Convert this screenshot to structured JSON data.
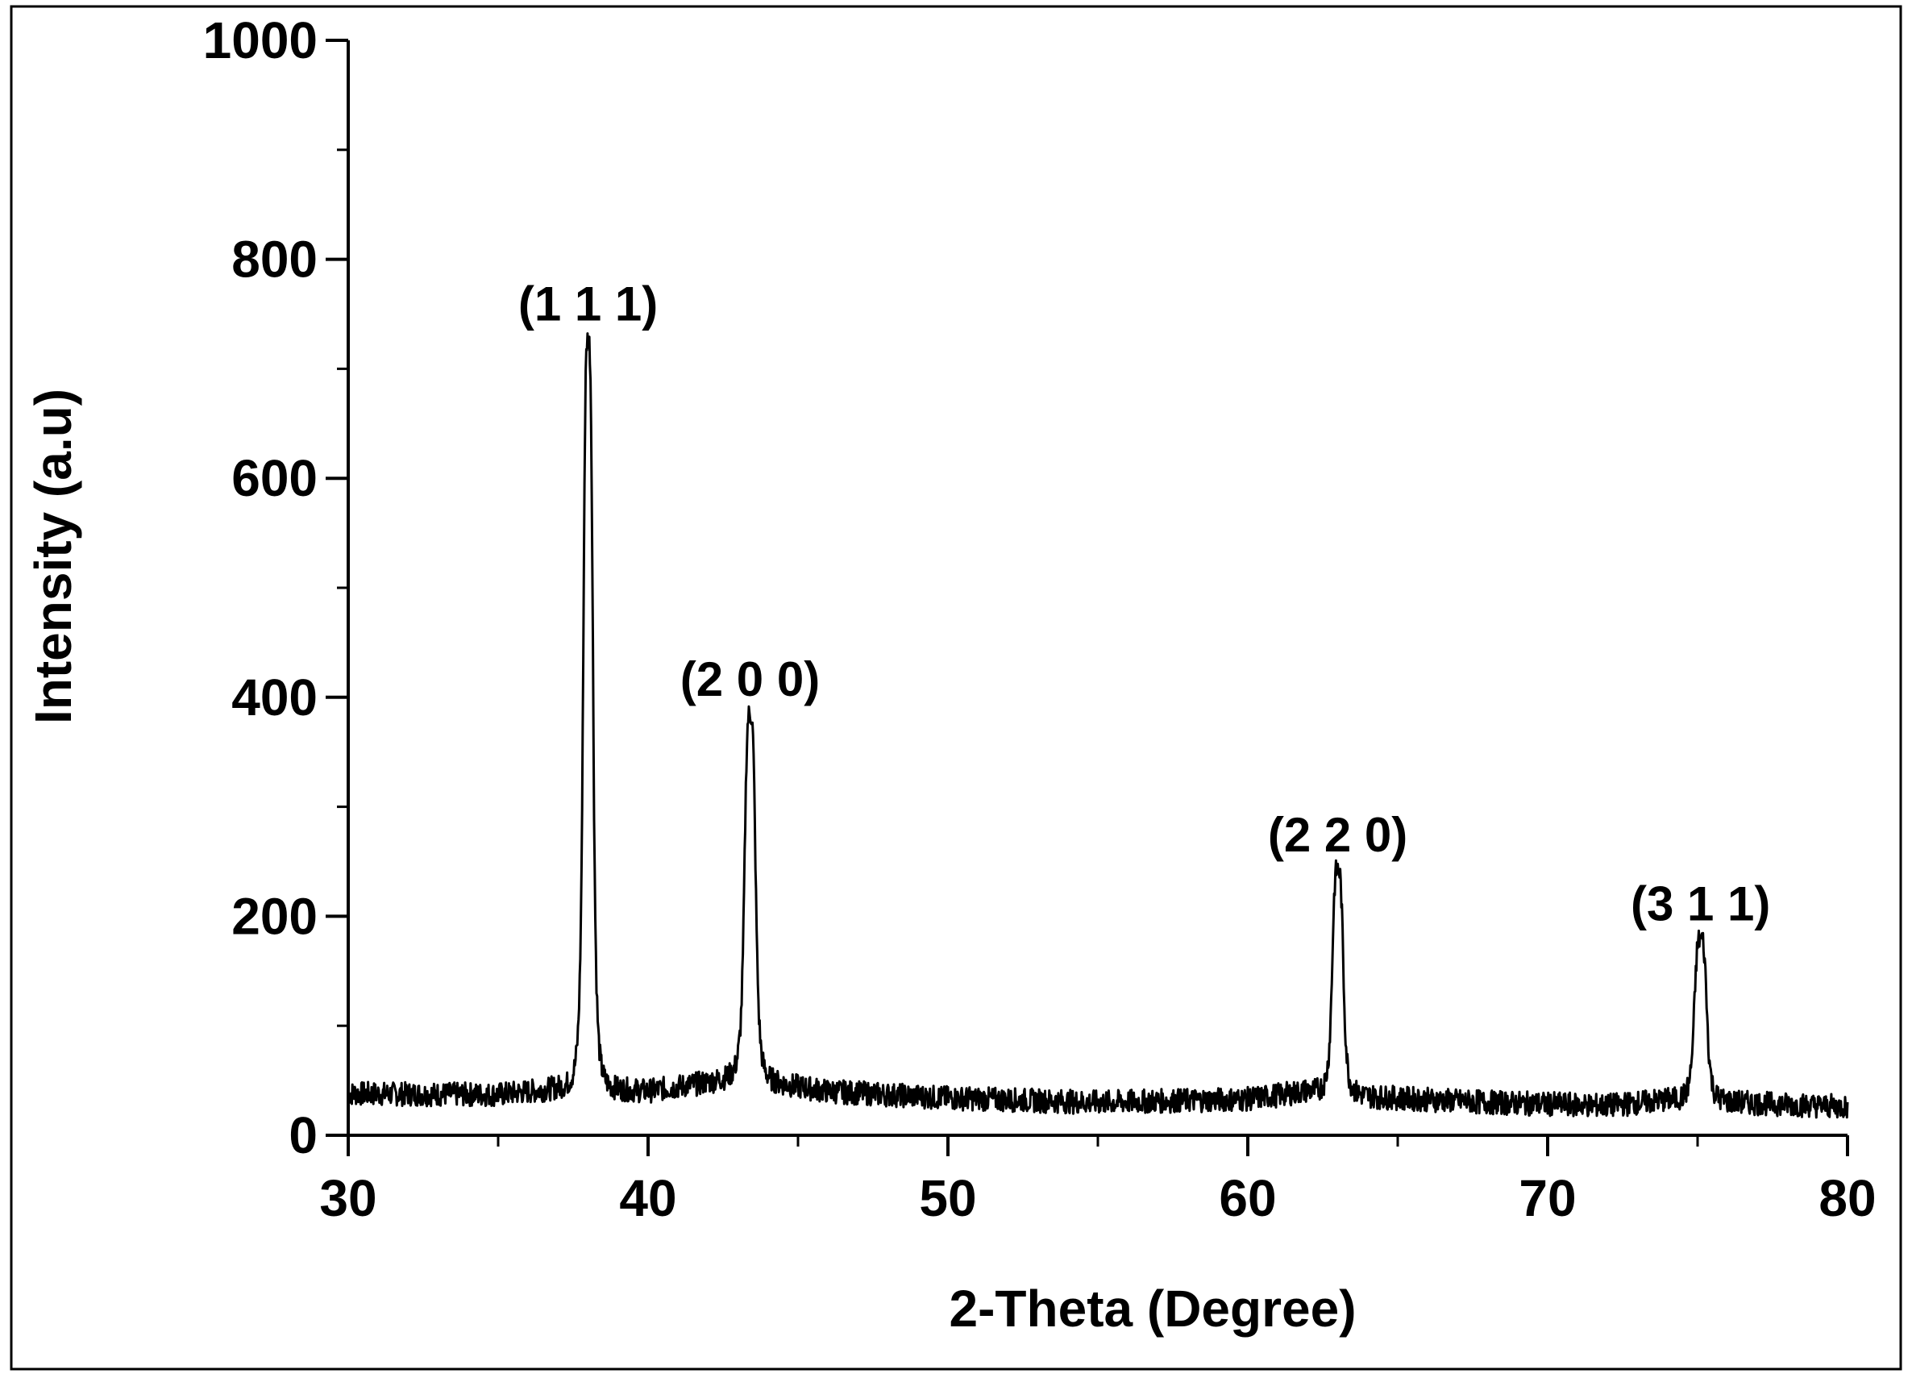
{
  "chart_data": {
    "type": "line",
    "title": "",
    "xlabel": "2-Theta (Degree)",
    "ylabel": "Intensity (a.u)",
    "xlim": [
      30,
      80
    ],
    "ylim": [
      0,
      1000
    ],
    "x_ticks": [
      30,
      40,
      50,
      60,
      70,
      80
    ],
    "y_ticks": [
      0,
      200,
      400,
      600,
      800,
      1000
    ],
    "grid": false,
    "legend": "none",
    "line_color": "#000000",
    "baseline": [
      [
        30,
        38
      ],
      [
        35,
        37
      ],
      [
        37,
        42
      ],
      [
        40,
        40
      ],
      [
        42,
        48
      ],
      [
        43,
        52
      ],
      [
        46,
        40
      ],
      [
        50,
        34
      ],
      [
        55,
        30
      ],
      [
        60,
        33
      ],
      [
        62,
        40
      ],
      [
        64,
        35
      ],
      [
        68,
        30
      ],
      [
        72,
        27
      ],
      [
        74,
        32
      ],
      [
        76,
        30
      ],
      [
        80,
        26
      ]
    ],
    "peaks": [
      {
        "label": "(1 1 1)",
        "x": 38.0,
        "y": 728,
        "width": 0.35
      },
      {
        "label": "(2 0 0)",
        "x": 43.4,
        "y": 385,
        "width": 0.4
      },
      {
        "label": "(2 2 0)",
        "x": 63.0,
        "y": 243,
        "width": 0.4
      },
      {
        "label": "(3 1 1)",
        "x": 75.1,
        "y": 180,
        "width": 0.45
      }
    ]
  }
}
